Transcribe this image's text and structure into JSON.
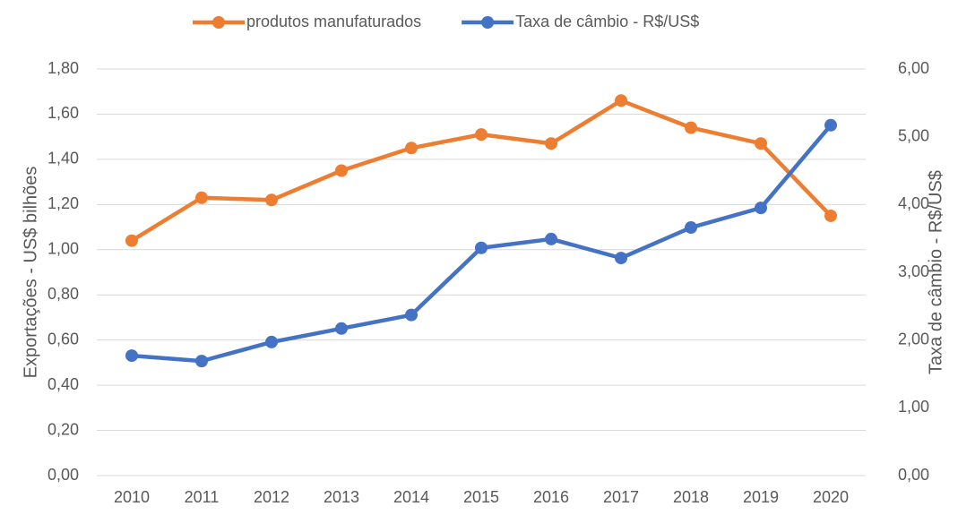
{
  "chart_data": {
    "type": "line",
    "categories": [
      "2010",
      "2011",
      "2012",
      "2013",
      "2014",
      "2015",
      "2016",
      "2017",
      "2018",
      "2019",
      "2020"
    ],
    "series": [
      {
        "name": "produtos manufaturados",
        "color": "#ed7d31",
        "axis": "y",
        "values": [
          1.04,
          1.23,
          1.22,
          1.35,
          1.45,
          1.51,
          1.47,
          1.66,
          1.54,
          1.47,
          1.15
        ]
      },
      {
        "name": "Taxa de câmbio - R$/US$",
        "color": "#4472c4",
        "axis": "y2",
        "values": [
          1.77,
          1.69,
          1.97,
          2.17,
          2.37,
          3.36,
          3.49,
          3.21,
          3.66,
          3.95,
          5.17
        ]
      }
    ],
    "ylabel": "Exportações - US$ bilhões",
    "y2label": "Taxa de câmbio - R$/US$",
    "ylim": [
      0,
      1.8
    ],
    "yticks": [
      {
        "value": 0,
        "label": "0,00"
      },
      {
        "value": 0.2,
        "label": "0,20"
      },
      {
        "value": 0.4,
        "label": "0,40"
      },
      {
        "value": 0.6,
        "label": "0,60"
      },
      {
        "value": 0.8,
        "label": "0,80"
      },
      {
        "value": 1,
        "label": "1,00"
      },
      {
        "value": 1.2,
        "label": "1,20"
      },
      {
        "value": 1.4,
        "label": "1,40"
      },
      {
        "value": 1.6,
        "label": "1,60"
      },
      {
        "value": 1.8,
        "label": "1,80"
      }
    ],
    "y2lim": [
      0,
      6
    ],
    "y2ticks": [
      {
        "value": 0,
        "label": "0,00"
      },
      {
        "value": 1,
        "label": "1,00"
      },
      {
        "value": 2,
        "label": "2,00"
      },
      {
        "value": 3,
        "label": "3,00"
      },
      {
        "value": 4,
        "label": "4,00"
      },
      {
        "value": 5,
        "label": "5,00"
      },
      {
        "value": 6,
        "label": "6,00"
      }
    ],
    "grid": true,
    "legend": "top"
  }
}
